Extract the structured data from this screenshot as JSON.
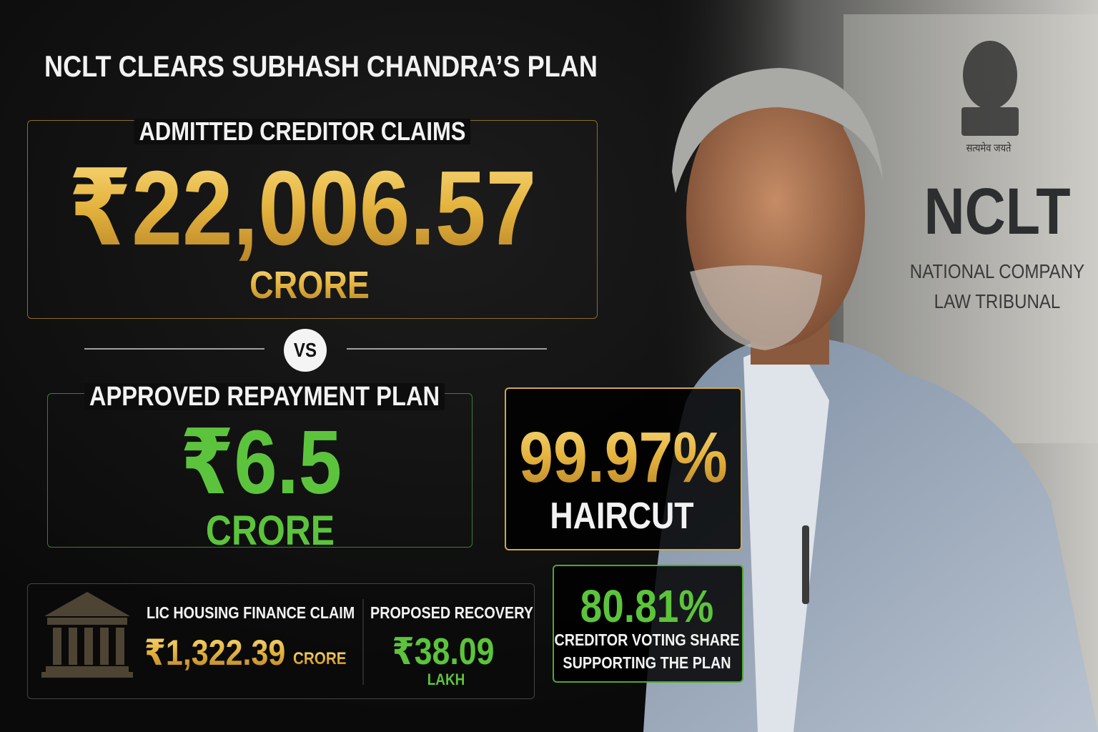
{
  "title": "NCLT CLEARS SUBHASH CHANDRA’S PLAN",
  "claims": {
    "label": "ADMITTED CREDITOR CLAIMS",
    "amount": "₹22,006.57",
    "unit": "CRORE"
  },
  "vs": "VS",
  "plan": {
    "label": "APPROVED REPAYMENT PLAN",
    "amount": "₹6.5",
    "unit": "CRORE"
  },
  "haircut": {
    "value": "99.97%",
    "label": "HAIRCUT"
  },
  "lic": {
    "label": "LIC HOUSING FINANCE CLAIM",
    "amount": "₹1,322.39",
    "unit": "CRORE"
  },
  "recovery": {
    "label": "PROPOSED RECOVERY",
    "amount": "₹38.09",
    "unit": "LAKH"
  },
  "voting": {
    "value": "80.81%",
    "label_lines": [
      "CREDITOR VOTING SHARE",
      "SUPPORTING THE PLAN"
    ]
  },
  "sign": {
    "motto": "सत्यमेव जयते",
    "acronym": "NCLT",
    "name_lines": [
      "NATIONAL COMPANY",
      "LAW TRIBUNAL"
    ]
  }
}
